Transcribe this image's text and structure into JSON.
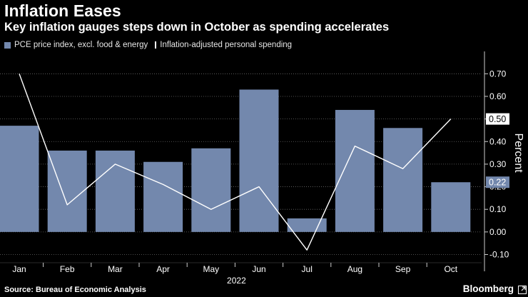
{
  "header": {
    "title": "Inflation Eases",
    "subtitle": "Key inflation gauges steps down in October as spending accelerates"
  },
  "legend": [
    {
      "label": "PCE price index, excl. food & energy",
      "color": "#7388ad"
    },
    {
      "label": "Inflation-adjusted personal spending",
      "color": "#ffffff"
    }
  ],
  "footer": {
    "source": "Source: Bureau of Economic Analysis",
    "brand": "Bloomberg",
    "brand_icon": "bloomberg-expand-icon"
  },
  "chart_data": {
    "type": "bar+line",
    "categories": [
      "Jan",
      "Feb",
      "Mar",
      "Apr",
      "May",
      "Jun",
      "Jul",
      "Aug",
      "Sep",
      "Oct"
    ],
    "year_label": "2022",
    "series": [
      {
        "name": "PCE price index, excl. food & energy",
        "type": "bar",
        "color": "#7388ad",
        "values": [
          0.47,
          0.36,
          0.36,
          0.31,
          0.37,
          0.63,
          0.06,
          0.54,
          0.46,
          0.22
        ]
      },
      {
        "name": "Inflation-adjusted personal spending",
        "type": "line",
        "color": "#ffffff",
        "values": [
          0.7,
          0.12,
          0.3,
          0.21,
          0.1,
          0.2,
          -0.08,
          0.38,
          0.28,
          0.5
        ]
      }
    ],
    "ylabel": "Percent",
    "ylim": [
      -0.13,
      0.78
    ],
    "yticks": [
      -0.1,
      0.0,
      0.1,
      0.2,
      0.3,
      0.4,
      0.5,
      0.6,
      0.7
    ],
    "ytick_labels": [
      "-0.10",
      "0.00",
      "0.10",
      "0.20",
      "0.30",
      "0.40",
      "0.50",
      "0.60",
      "0.70"
    ],
    "end_labels": [
      {
        "series": "Inflation-adjusted personal spending",
        "value": 0.5,
        "text": "0.50"
      },
      {
        "series": "PCE price index, excl. food & energy",
        "value": 0.22,
        "text": "0.22"
      }
    ],
    "grid": "horizontal-dotted",
    "legend_position": "top-left"
  }
}
